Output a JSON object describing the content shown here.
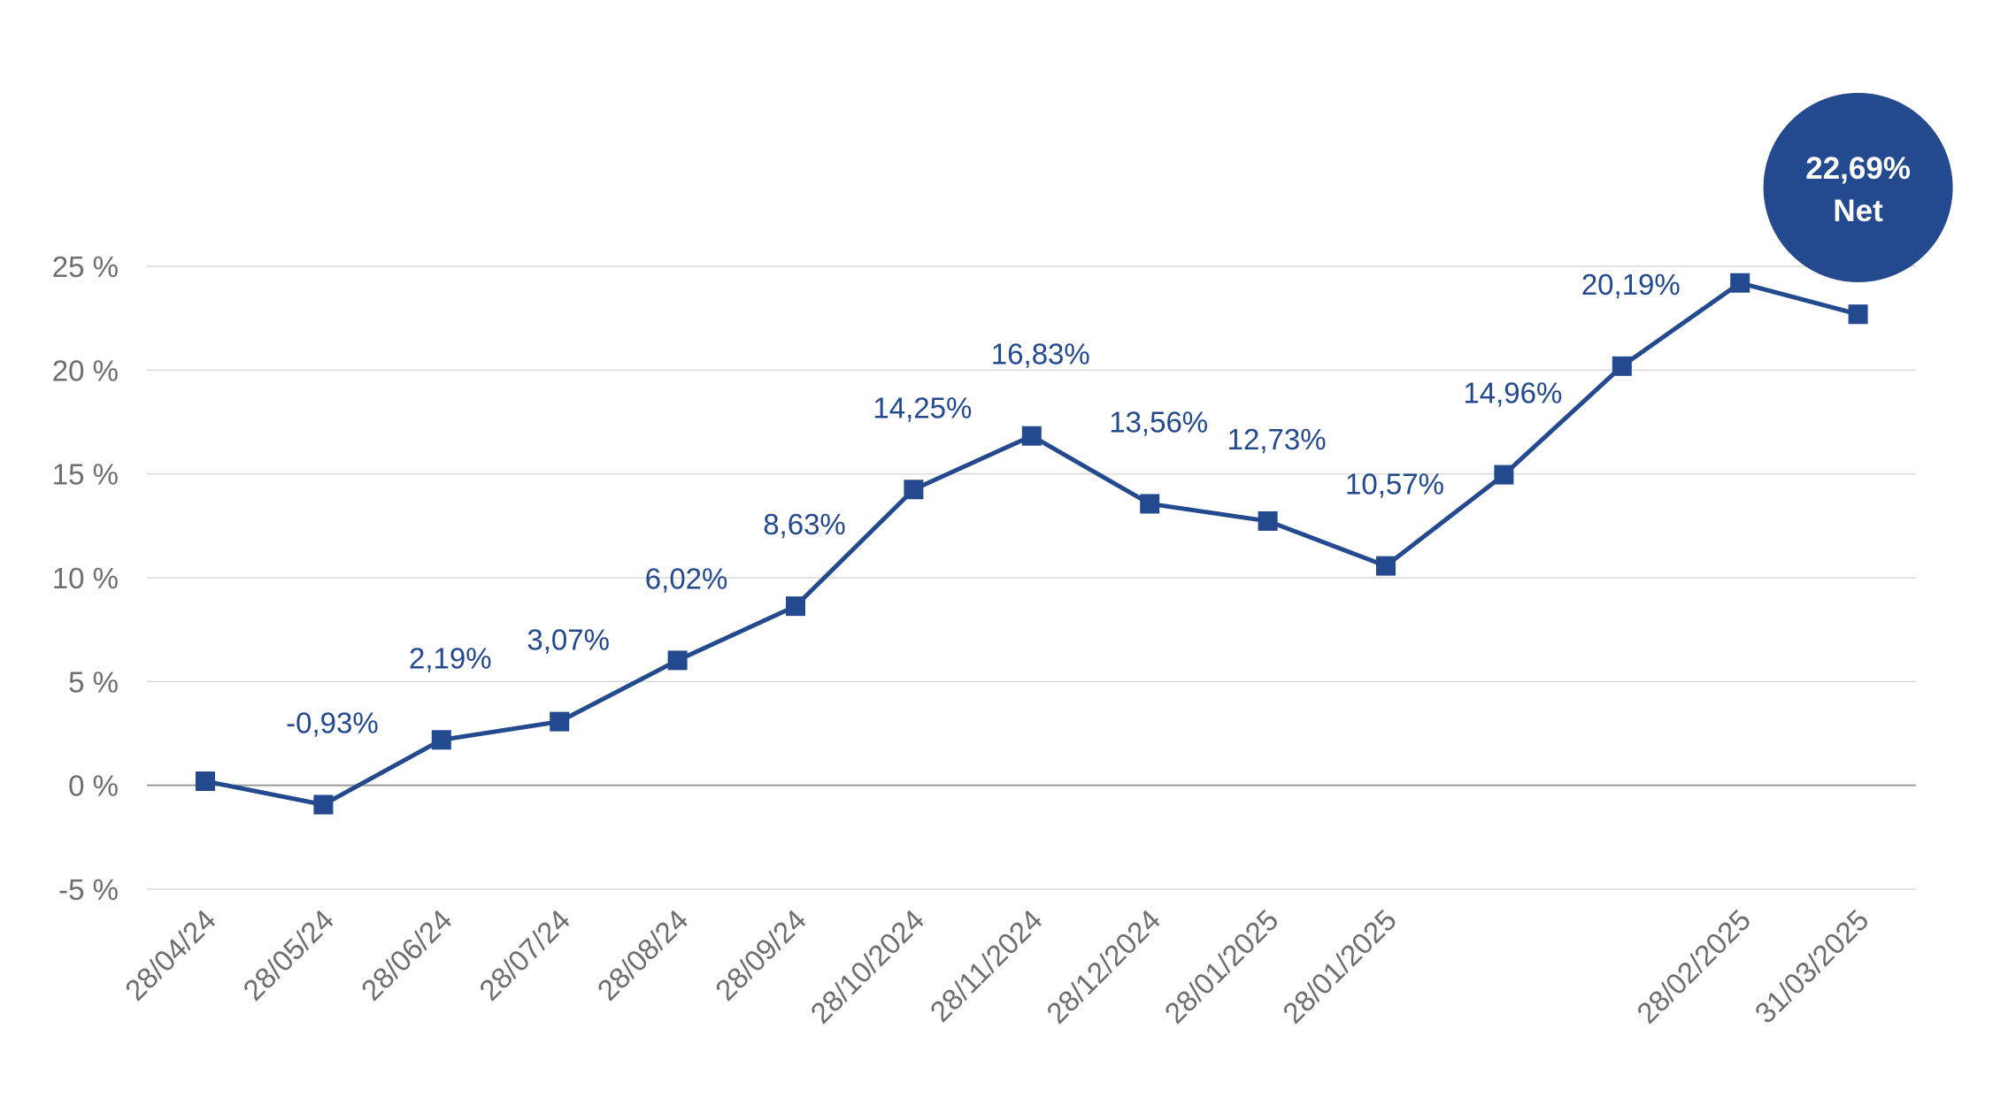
{
  "colors": {
    "series": "#23498f",
    "grid": "#d9d9d9",
    "zero_line": "#9a9a9a",
    "tick_text": "#6e6e6e",
    "callout_text": "#ffffff"
  },
  "chart_data": {
    "type": "line",
    "x": [
      "28/04/24",
      "28/05/24",
      "28/06/24",
      "28/07/24",
      "28/08/24",
      "28/09/24",
      "28/10/2024",
      "28/11/2024",
      "28/12/2024",
      "28/01/2025",
      "28/01/2025",
      "",
      "",
      "28/02/2025",
      "31/03/2025"
    ],
    "series": [
      {
        "values": [
          0.2,
          -0.93,
          2.19,
          3.07,
          6.02,
          8.63,
          14.25,
          16.83,
          13.56,
          12.73,
          10.57,
          14.96,
          20.19,
          24.2,
          22.69
        ],
        "labels": [
          "",
          "-0,93%",
          "2,19%",
          "3,07%",
          "6,02%",
          "8,63%",
          "14,25%",
          "16,83%",
          "13,56%",
          "12,73%",
          "10,57%",
          "14,96%",
          "20,19%",
          "",
          ""
        ]
      }
    ],
    "ylim": [
      -5,
      25
    ],
    "yticks": [
      -5,
      0,
      5,
      10,
      15,
      20,
      25
    ],
    "ytick_labels": [
      "-5 %",
      "0 %",
      "5 %",
      "10 %",
      "15 %",
      "20 %",
      "25 %"
    ],
    "grid": true,
    "legend": "none",
    "callout": {
      "line1": "22,69%",
      "line2": "Net",
      "point_index": 14
    }
  }
}
